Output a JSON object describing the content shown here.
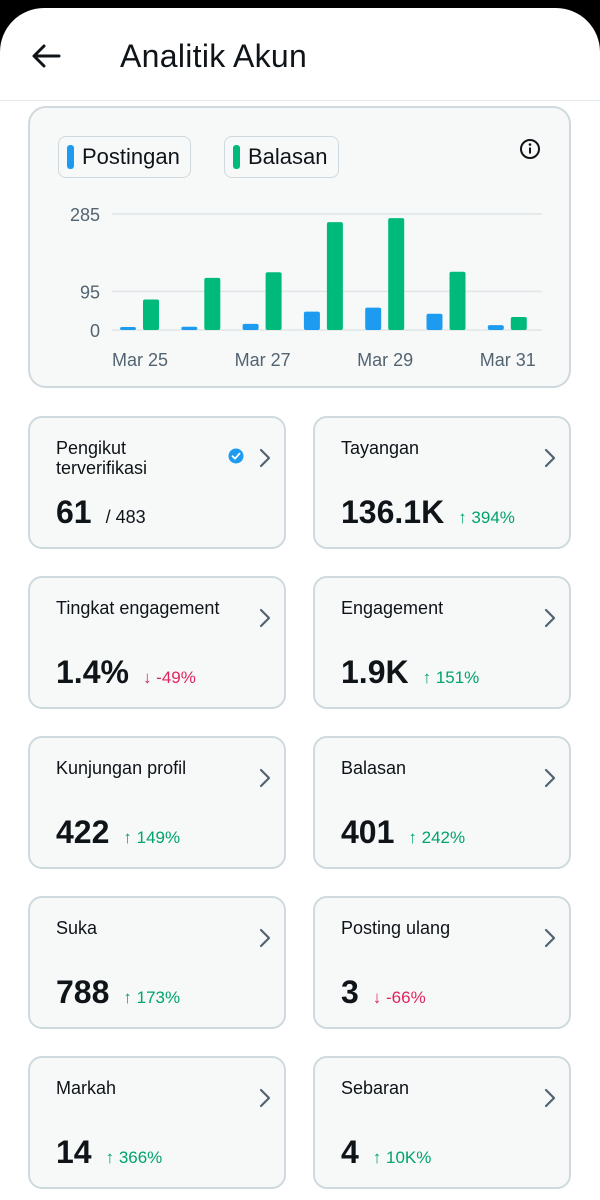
{
  "header": {
    "title": "Analitik Akun"
  },
  "legend": {
    "posts": "Postingan",
    "replies": "Balasan"
  },
  "colors": {
    "posts": "#1d9bf0",
    "replies": "#00ba7c",
    "up": "#00a36a",
    "down": "#e0245e"
  },
  "chart_data": {
    "type": "bar",
    "categories": [
      "Mar 25",
      "Mar 26",
      "Mar 27",
      "Mar 28",
      "Mar 29",
      "Mar 30",
      "Mar 31"
    ],
    "x_tick_labels": [
      "Mar 25",
      "Mar 27",
      "Mar 29",
      "Mar 31"
    ],
    "y_tick_labels": [
      "285",
      "95",
      "0"
    ],
    "y_ticks": [
      285,
      95,
      0
    ],
    "ylim": [
      0,
      285
    ],
    "series": [
      {
        "name": "Postingan",
        "values": [
          5,
          8,
          15,
          45,
          55,
          40,
          12
        ]
      },
      {
        "name": "Balasan",
        "values": [
          75,
          128,
          142,
          265,
          275,
          143,
          32
        ]
      }
    ]
  },
  "stats": [
    {
      "label": "Pengikut terverifikasi",
      "value": "61",
      "sub": "/ 483",
      "delta": "",
      "dir": ""
    },
    {
      "label": "Tayangan",
      "value": "136.1K",
      "sub": "",
      "delta": "↑ 394%",
      "dir": "up"
    },
    {
      "label": "Tingkat engagement",
      "value": "1.4%",
      "sub": "",
      "delta": "↓ -49%",
      "dir": "down"
    },
    {
      "label": "Engagement",
      "value": "1.9K",
      "sub": "",
      "delta": "↑ 151%",
      "dir": "up"
    },
    {
      "label": "Kunjungan profil",
      "value": "422",
      "sub": "",
      "delta": "↑ 149%",
      "dir": "up"
    },
    {
      "label": "Balasan",
      "value": "401",
      "sub": "",
      "delta": "↑ 242%",
      "dir": "up"
    },
    {
      "label": "Suka",
      "value": "788",
      "sub": "",
      "delta": "↑ 173%",
      "dir": "up"
    },
    {
      "label": "Posting ulang",
      "value": "3",
      "sub": "",
      "delta": "↓ -66%",
      "dir": "down"
    },
    {
      "label": "Markah",
      "value": "14",
      "sub": "",
      "delta": "↑ 366%",
      "dir": "up"
    },
    {
      "label": "Sebaran",
      "value": "4",
      "sub": "",
      "delta": "↑ 10K%",
      "dir": "up"
    }
  ]
}
